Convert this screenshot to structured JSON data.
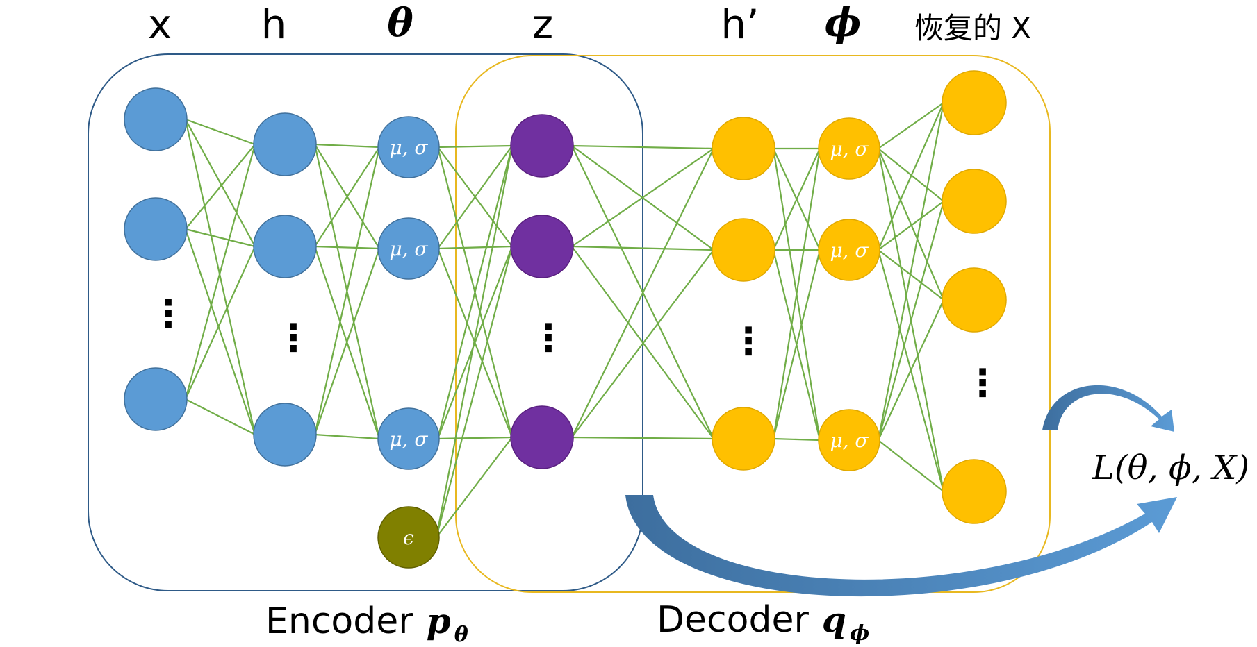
{
  "columns": {
    "x": "x",
    "h": "h",
    "theta": "θ",
    "z": "z",
    "h_prime": "h’",
    "phi": "ϕ",
    "recovered": "恢复的 X"
  },
  "node_labels": {
    "mu_sigma": "μ, σ",
    "epsilon": "ϵ"
  },
  "encoder": {
    "label": "Encoder",
    "symbol": "p",
    "subscript": "θ"
  },
  "decoder": {
    "label": "Decoder",
    "symbol": "q",
    "subscript": "ϕ"
  },
  "loss": "L(θ, ϕ, X)",
  "colors": {
    "encoder_node": "#5b9bd5",
    "latent_node": "#7030a0",
    "decoder_node": "#ffc000",
    "noise_node": "#808000",
    "edge": "#70ad47",
    "encoder_box": "#2e5a87",
    "decoder_box": "#e8b820",
    "arrow": "#4a7fb5"
  }
}
